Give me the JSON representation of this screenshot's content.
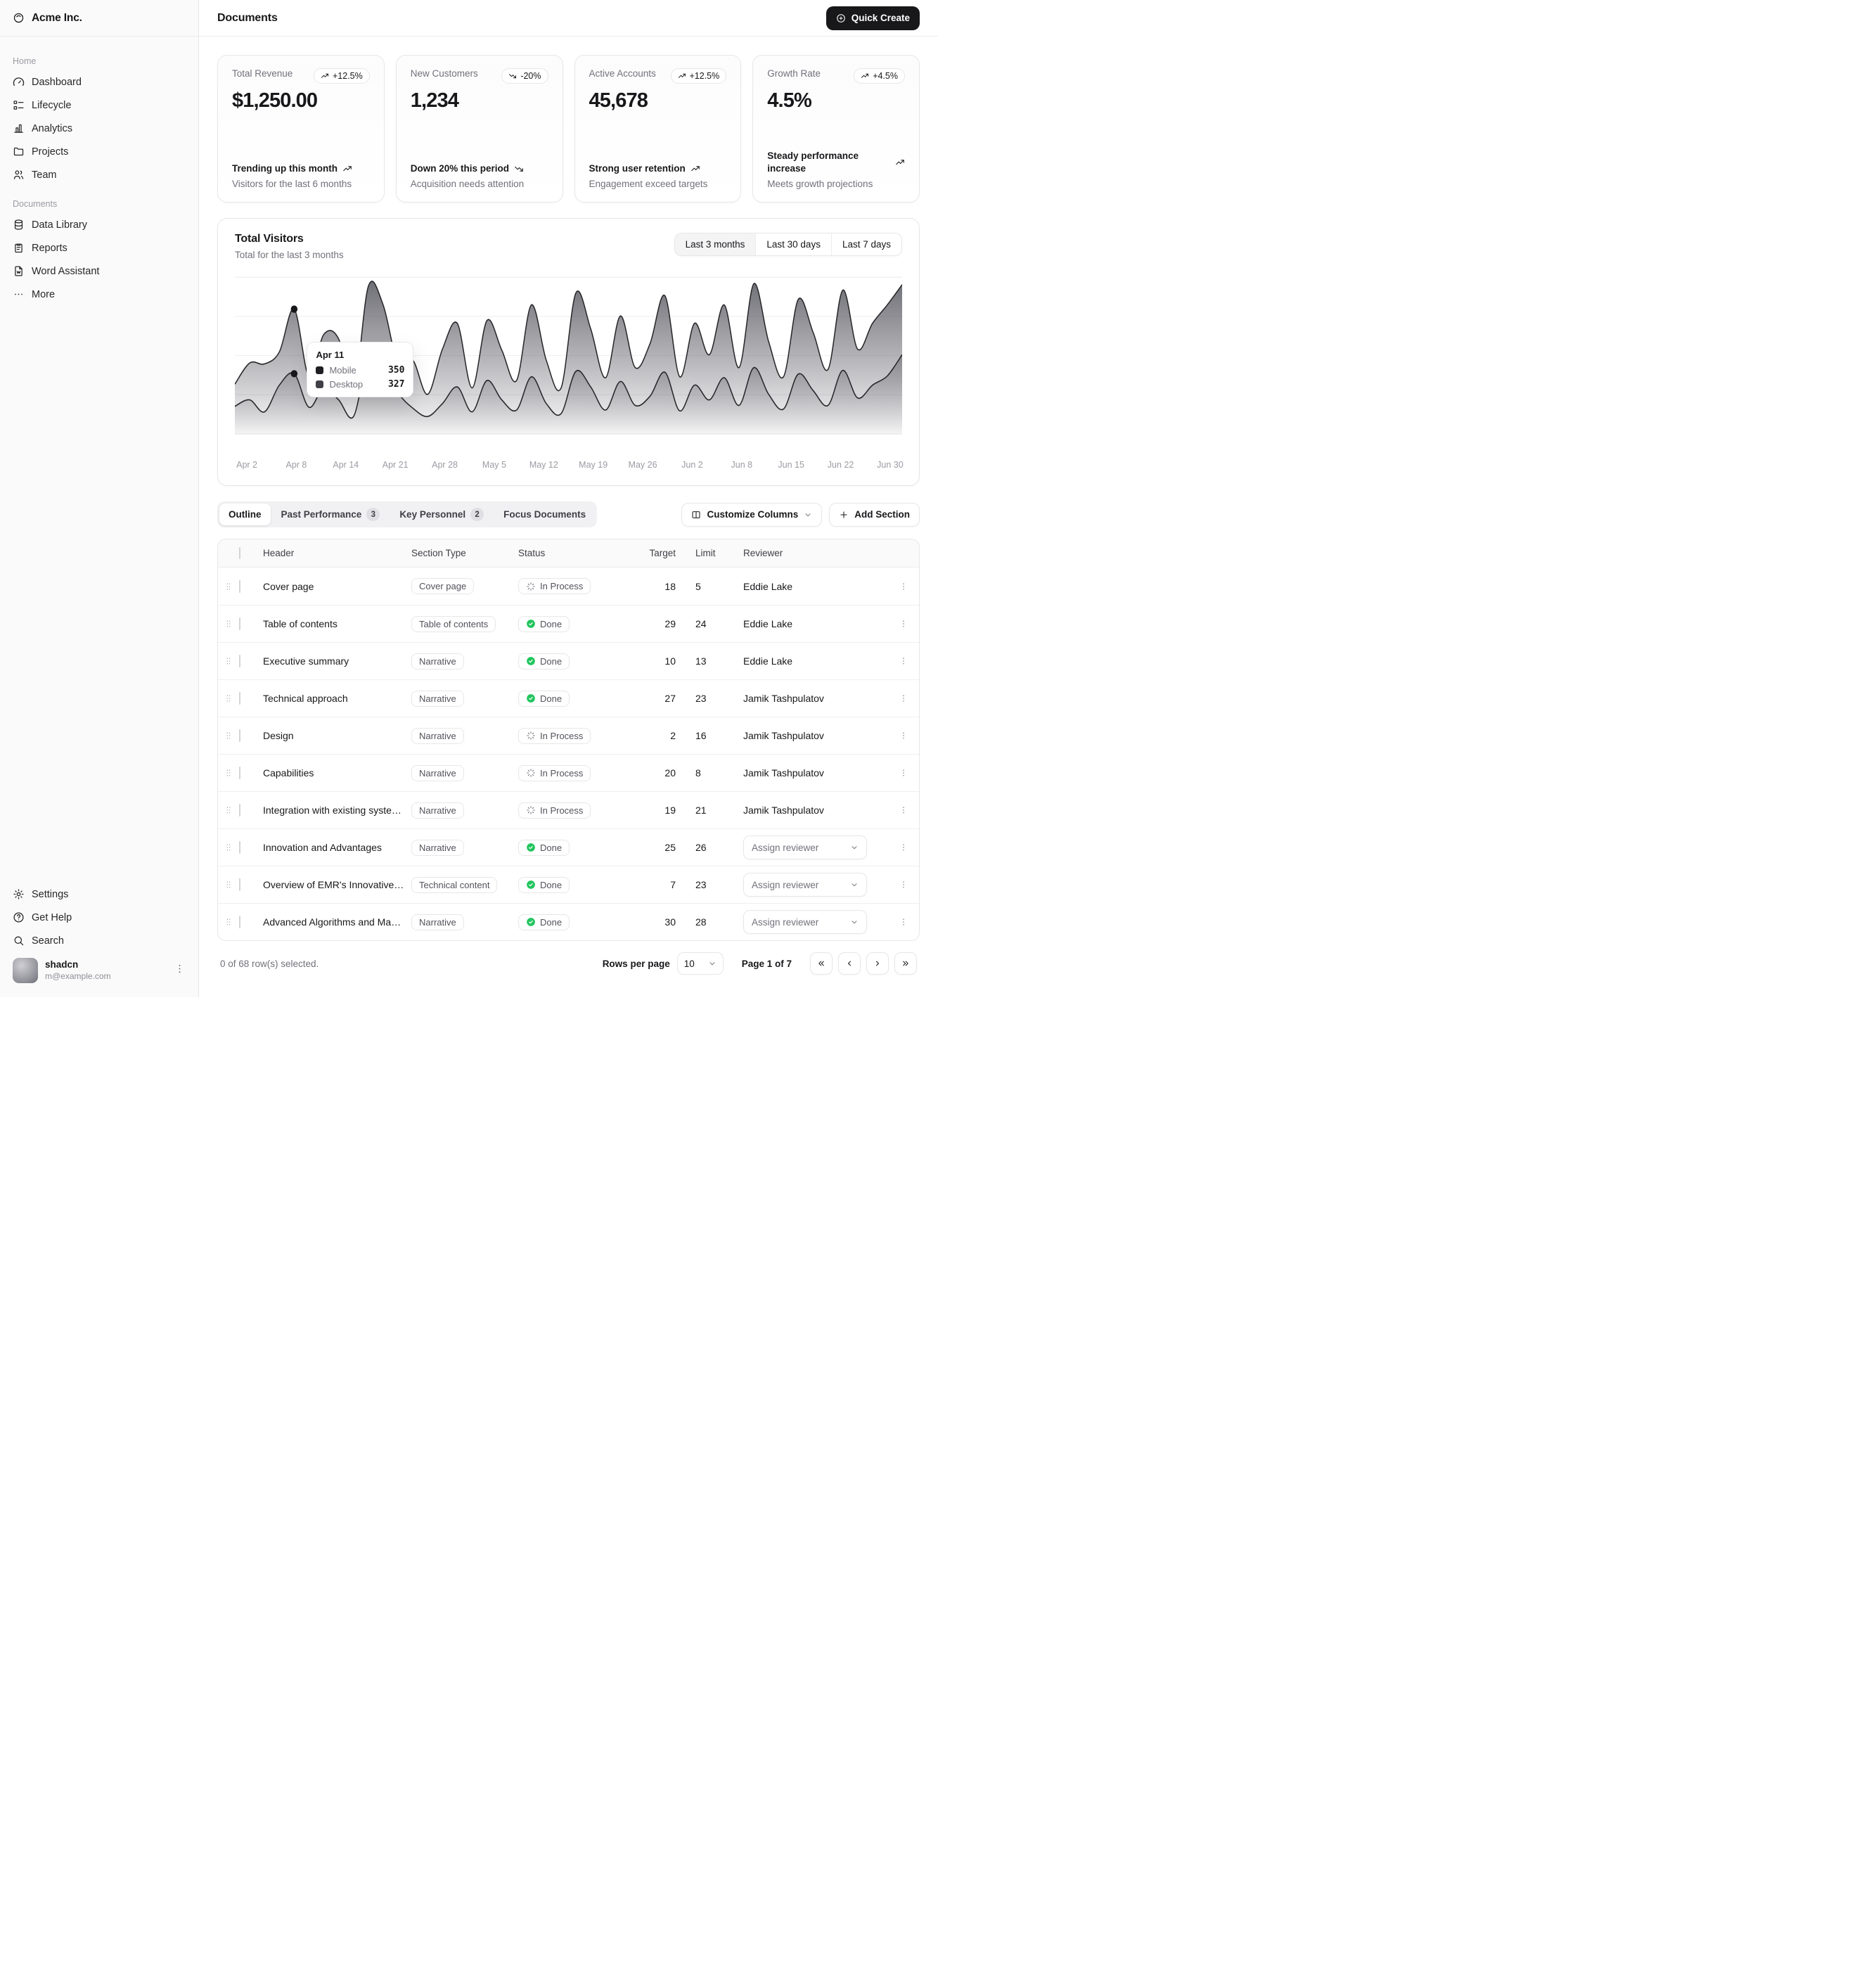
{
  "app": {
    "company": "Acme Inc.",
    "logo_icon": "acme-logo-icon"
  },
  "header": {
    "title": "Documents",
    "quick_create_label": "Quick Create",
    "quick_create_icon": "plus-circle-icon"
  },
  "sidebar": {
    "sections": [
      {
        "label": "Home",
        "items": [
          {
            "label": "Dashboard",
            "icon": "dashboard-icon"
          },
          {
            "label": "Lifecycle",
            "icon": "lifecycle-icon"
          },
          {
            "label": "Analytics",
            "icon": "analytics-icon"
          },
          {
            "label": "Projects",
            "icon": "folder-icon"
          },
          {
            "label": "Team",
            "icon": "users-icon"
          }
        ]
      },
      {
        "label": "Documents",
        "items": [
          {
            "label": "Data Library",
            "icon": "database-icon"
          },
          {
            "label": "Reports",
            "icon": "clipboard-icon"
          },
          {
            "label": "Word Assistant",
            "icon": "word-file-icon"
          },
          {
            "label": "More",
            "icon": "ellipsis-icon"
          }
        ]
      }
    ],
    "footer_items": [
      {
        "label": "Settings",
        "icon": "gear-icon"
      },
      {
        "label": "Get Help",
        "icon": "help-icon"
      },
      {
        "label": "Search",
        "icon": "search-icon"
      }
    ],
    "user": {
      "name": "shadcn",
      "email": "m@example.com"
    }
  },
  "stat_cards": [
    {
      "label": "Total Revenue",
      "badge": "+12.5%",
      "trend": "up",
      "value": "$1,250.00",
      "line1": "Trending up this month",
      "line2": "Visitors for the last 6 months"
    },
    {
      "label": "New Customers",
      "badge": "-20%",
      "trend": "down",
      "value": "1,234",
      "line1": "Down 20% this period",
      "line2": "Acquisition needs attention"
    },
    {
      "label": "Active Accounts",
      "badge": "+12.5%",
      "trend": "up",
      "value": "45,678",
      "line1": "Strong user retention",
      "line2": "Engagement exceed targets"
    },
    {
      "label": "Growth Rate",
      "badge": "+4.5%",
      "trend": "up",
      "value": "4.5%",
      "line1": "Steady performance increase",
      "line2": "Meets growth projections"
    }
  ],
  "chart_card": {
    "title": "Total Visitors",
    "subtitle": "Total for the last 3 months",
    "ranges": [
      "Last 3 months",
      "Last 30 days",
      "Last 7 days"
    ],
    "active_range": 0
  },
  "chart_data": {
    "type": "area",
    "stacked": true,
    "x_ticks": [
      "Apr 2",
      "Apr 8",
      "Apr 14",
      "Apr 21",
      "Apr 28",
      "May 5",
      "May 12",
      "May 19",
      "May 26",
      "Jun 2",
      "Jun 8",
      "Jun 15",
      "Jun 22",
      "Jun 30"
    ],
    "ylim": [
      0,
      850
    ],
    "grid": true,
    "series": [
      {
        "name": "Desktop",
        "color": "#3f3f46",
        "values": [
          150,
          185,
          120,
          265,
          327,
          145,
          250,
          185,
          95,
          420,
          390,
          225,
          140,
          95,
          165,
          255,
          120,
          290,
          185,
          130,
          310,
          165,
          110,
          340,
          255,
          130,
          285,
          155,
          205,
          335,
          125,
          265,
          185,
          305,
          155,
          360,
          215,
          135,
          325,
          235,
          155,
          345,
          195,
          265,
          315,
          430
        ]
      },
      {
        "name": "Mobile",
        "color": "#1f1f23",
        "values": [
          120,
          200,
          260,
          180,
          350,
          165,
          290,
          330,
          125,
          380,
          310,
          155,
          260,
          120,
          295,
          345,
          130,
          325,
          270,
          160,
          390,
          235,
          140,
          425,
          315,
          175,
          355,
          205,
          285,
          415,
          185,
          335,
          245,
          395,
          205,
          455,
          285,
          175,
          405,
          315,
          195,
          435,
          265,
          335,
          385,
          380
        ]
      }
    ],
    "tooltip": {
      "label": "Apr 11",
      "index": 4,
      "rows": [
        {
          "name": "Mobile",
          "value": "350"
        },
        {
          "name": "Desktop",
          "value": "327"
        }
      ]
    }
  },
  "tabs": {
    "items": [
      {
        "label": "Outline",
        "active": true
      },
      {
        "label": "Past Performance",
        "badge": "3"
      },
      {
        "label": "Key Personnel",
        "badge": "2"
      },
      {
        "label": "Focus Documents"
      }
    ],
    "customize_label": "Customize Columns",
    "customize_icon": "columns-icon",
    "add_label": "Add Section",
    "add_icon": "plus-icon"
  },
  "table": {
    "columns": [
      "Header",
      "Section Type",
      "Status",
      "Target",
      "Limit",
      "Reviewer"
    ],
    "assign_label": "Assign reviewer",
    "rows": [
      {
        "header": "Cover page",
        "type": "Cover page",
        "status": "In Process",
        "target": "18",
        "limit": "5",
        "reviewer": "Eddie Lake"
      },
      {
        "header": "Table of contents",
        "type": "Table of contents",
        "status": "Done",
        "target": "29",
        "limit": "24",
        "reviewer": "Eddie Lake"
      },
      {
        "header": "Executive summary",
        "type": "Narrative",
        "status": "Done",
        "target": "10",
        "limit": "13",
        "reviewer": "Eddie Lake"
      },
      {
        "header": "Technical approach",
        "type": "Narrative",
        "status": "Done",
        "target": "27",
        "limit": "23",
        "reviewer": "Jamik Tashpulatov"
      },
      {
        "header": "Design",
        "type": "Narrative",
        "status": "In Process",
        "target": "2",
        "limit": "16",
        "reviewer": "Jamik Tashpulatov"
      },
      {
        "header": "Capabilities",
        "type": "Narrative",
        "status": "In Process",
        "target": "20",
        "limit": "8",
        "reviewer": "Jamik Tashpulatov"
      },
      {
        "header": "Integration with existing systems",
        "type": "Narrative",
        "status": "In Process",
        "target": "19",
        "limit": "21",
        "reviewer": "Jamik Tashpulatov"
      },
      {
        "header": "Innovation and Advantages",
        "type": "Narrative",
        "status": "Done",
        "target": "25",
        "limit": "26",
        "reviewer": null
      },
      {
        "header": "Overview of EMR's Innovative Solutions",
        "type": "Technical content",
        "status": "Done",
        "target": "7",
        "limit": "23",
        "reviewer": null
      },
      {
        "header": "Advanced Algorithms and Machine Learning",
        "type": "Narrative",
        "status": "Done",
        "target": "30",
        "limit": "28",
        "reviewer": null
      }
    ]
  },
  "footer": {
    "selected_text": "0 of 68 row(s) selected.",
    "rows_per_page_label": "Rows per page",
    "rows_per_page_value": "10",
    "page_label": "Page 1 of 7"
  },
  "status_colors": {
    "done_green": "#22c55e"
  }
}
